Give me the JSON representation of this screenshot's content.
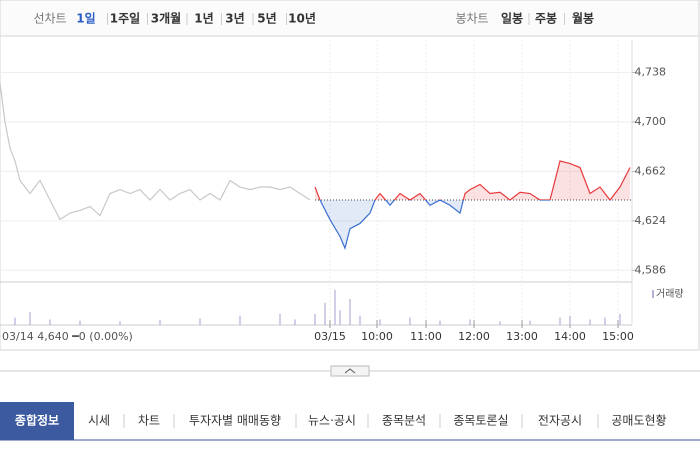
{
  "toolbar": {
    "line_label": "선차트",
    "line_options": [
      "1일",
      "1주일",
      "3개월",
      "1년",
      "3년",
      "5년",
      "10년"
    ],
    "selected": 0,
    "candle_label": "봉차트",
    "candle_options": [
      "일봉",
      "주봉",
      "월봉"
    ]
  },
  "chart_data": {
    "type": "line",
    "info": "03/14  4,640 ━0 (0.00%)",
    "baseline": 4640,
    "series": [
      {
        "color": "#c8c8c8",
        "x": [
          0,
          0.5,
          1,
          1.5,
          2,
          3,
          4,
          5,
          6,
          7,
          8,
          9,
          10,
          11,
          12,
          13,
          14,
          15,
          16,
          17,
          18,
          19,
          20,
          21,
          22,
          23,
          24,
          25,
          26,
          27,
          28,
          29,
          30,
          31
        ],
        "values": [
          4730,
          4700,
          4680,
          4670,
          4655,
          4645,
          4655,
          4640,
          4625,
          4630,
          4632,
          4635,
          4628,
          4645,
          4648,
          4645,
          4648,
          4640,
          4648,
          4640,
          4645,
          4648,
          4640,
          4645,
          4640,
          4655,
          4650,
          4648,
          4650,
          4650,
          4648,
          4650,
          4645,
          4640
        ]
      },
      {
        "color": "#e8393b",
        "color_down": "#3a6fd0",
        "x": [
          31.5,
          32,
          33,
          34,
          34.5,
          35,
          36,
          37,
          37.5,
          38,
          39,
          40,
          41,
          42,
          43,
          44,
          45,
          46,
          46.5,
          47,
          48,
          49,
          50,
          51,
          52,
          53,
          54,
          55,
          56,
          57,
          58,
          59,
          60,
          61,
          62,
          63
        ],
        "values": [
          4650,
          4640,
          4625,
          4612,
          4603,
          4618,
          4622,
          4630,
          4640,
          4645,
          4636,
          4645,
          4640,
          4645,
          4636,
          4640,
          4636,
          4630,
          4645,
          4648,
          4652,
          4645,
          4646,
          4640,
          4646,
          4645,
          4640,
          4640,
          4670,
          4668,
          4665,
          4645,
          4650,
          4640,
          4650,
          4665
        ]
      }
    ],
    "xlim": [
      0,
      63.2
    ],
    "xticks": [
      {
        "value": 33,
        "label": "03/15"
      },
      {
        "value": 37.7,
        "label": "10:00"
      },
      {
        "value": 42.6,
        "label": "11:00"
      },
      {
        "value": 47.4,
        "label": "12:00"
      },
      {
        "value": 52.2,
        "label": "13:00"
      },
      {
        "value": 57,
        "label": "14:00"
      },
      {
        "value": 61.8,
        "label": "15:00"
      }
    ],
    "ylim": [
      4577,
      4763
    ],
    "yticks": [
      {
        "value": 4586,
        "label": "4,586"
      },
      {
        "value": 4624,
        "label": "4,624"
      },
      {
        "value": 4662,
        "label": "4,662"
      },
      {
        "value": 4700,
        "label": "4,700"
      },
      {
        "value": 4738,
        "label": "4,738"
      }
    ],
    "grid": true,
    "volume": {
      "label": "거래량",
      "color": "#b4aed8",
      "ylim": [
        0,
        100
      ],
      "x": [
        1.5,
        3,
        5,
        8,
        12,
        16,
        20,
        24,
        28,
        29.5,
        31.5,
        32.5,
        33.5,
        34,
        35,
        36,
        38,
        41,
        44,
        47,
        50,
        53,
        56,
        57,
        59,
        60.5,
        62
      ],
      "values": [
        20,
        35,
        15,
        12,
        10,
        14,
        18,
        25,
        30,
        15,
        30,
        60,
        95,
        40,
        70,
        25,
        15,
        20,
        12,
        15,
        10,
        12,
        20,
        25,
        15,
        20,
        30
      ]
    }
  },
  "tabs": {
    "items": [
      "종합정보",
      "시세",
      "차트",
      "투자자별 매매동향",
      "뉴스·공시",
      "종목분석",
      "종목토론실",
      "전자공시",
      "공매도현황"
    ],
    "active": 0
  }
}
